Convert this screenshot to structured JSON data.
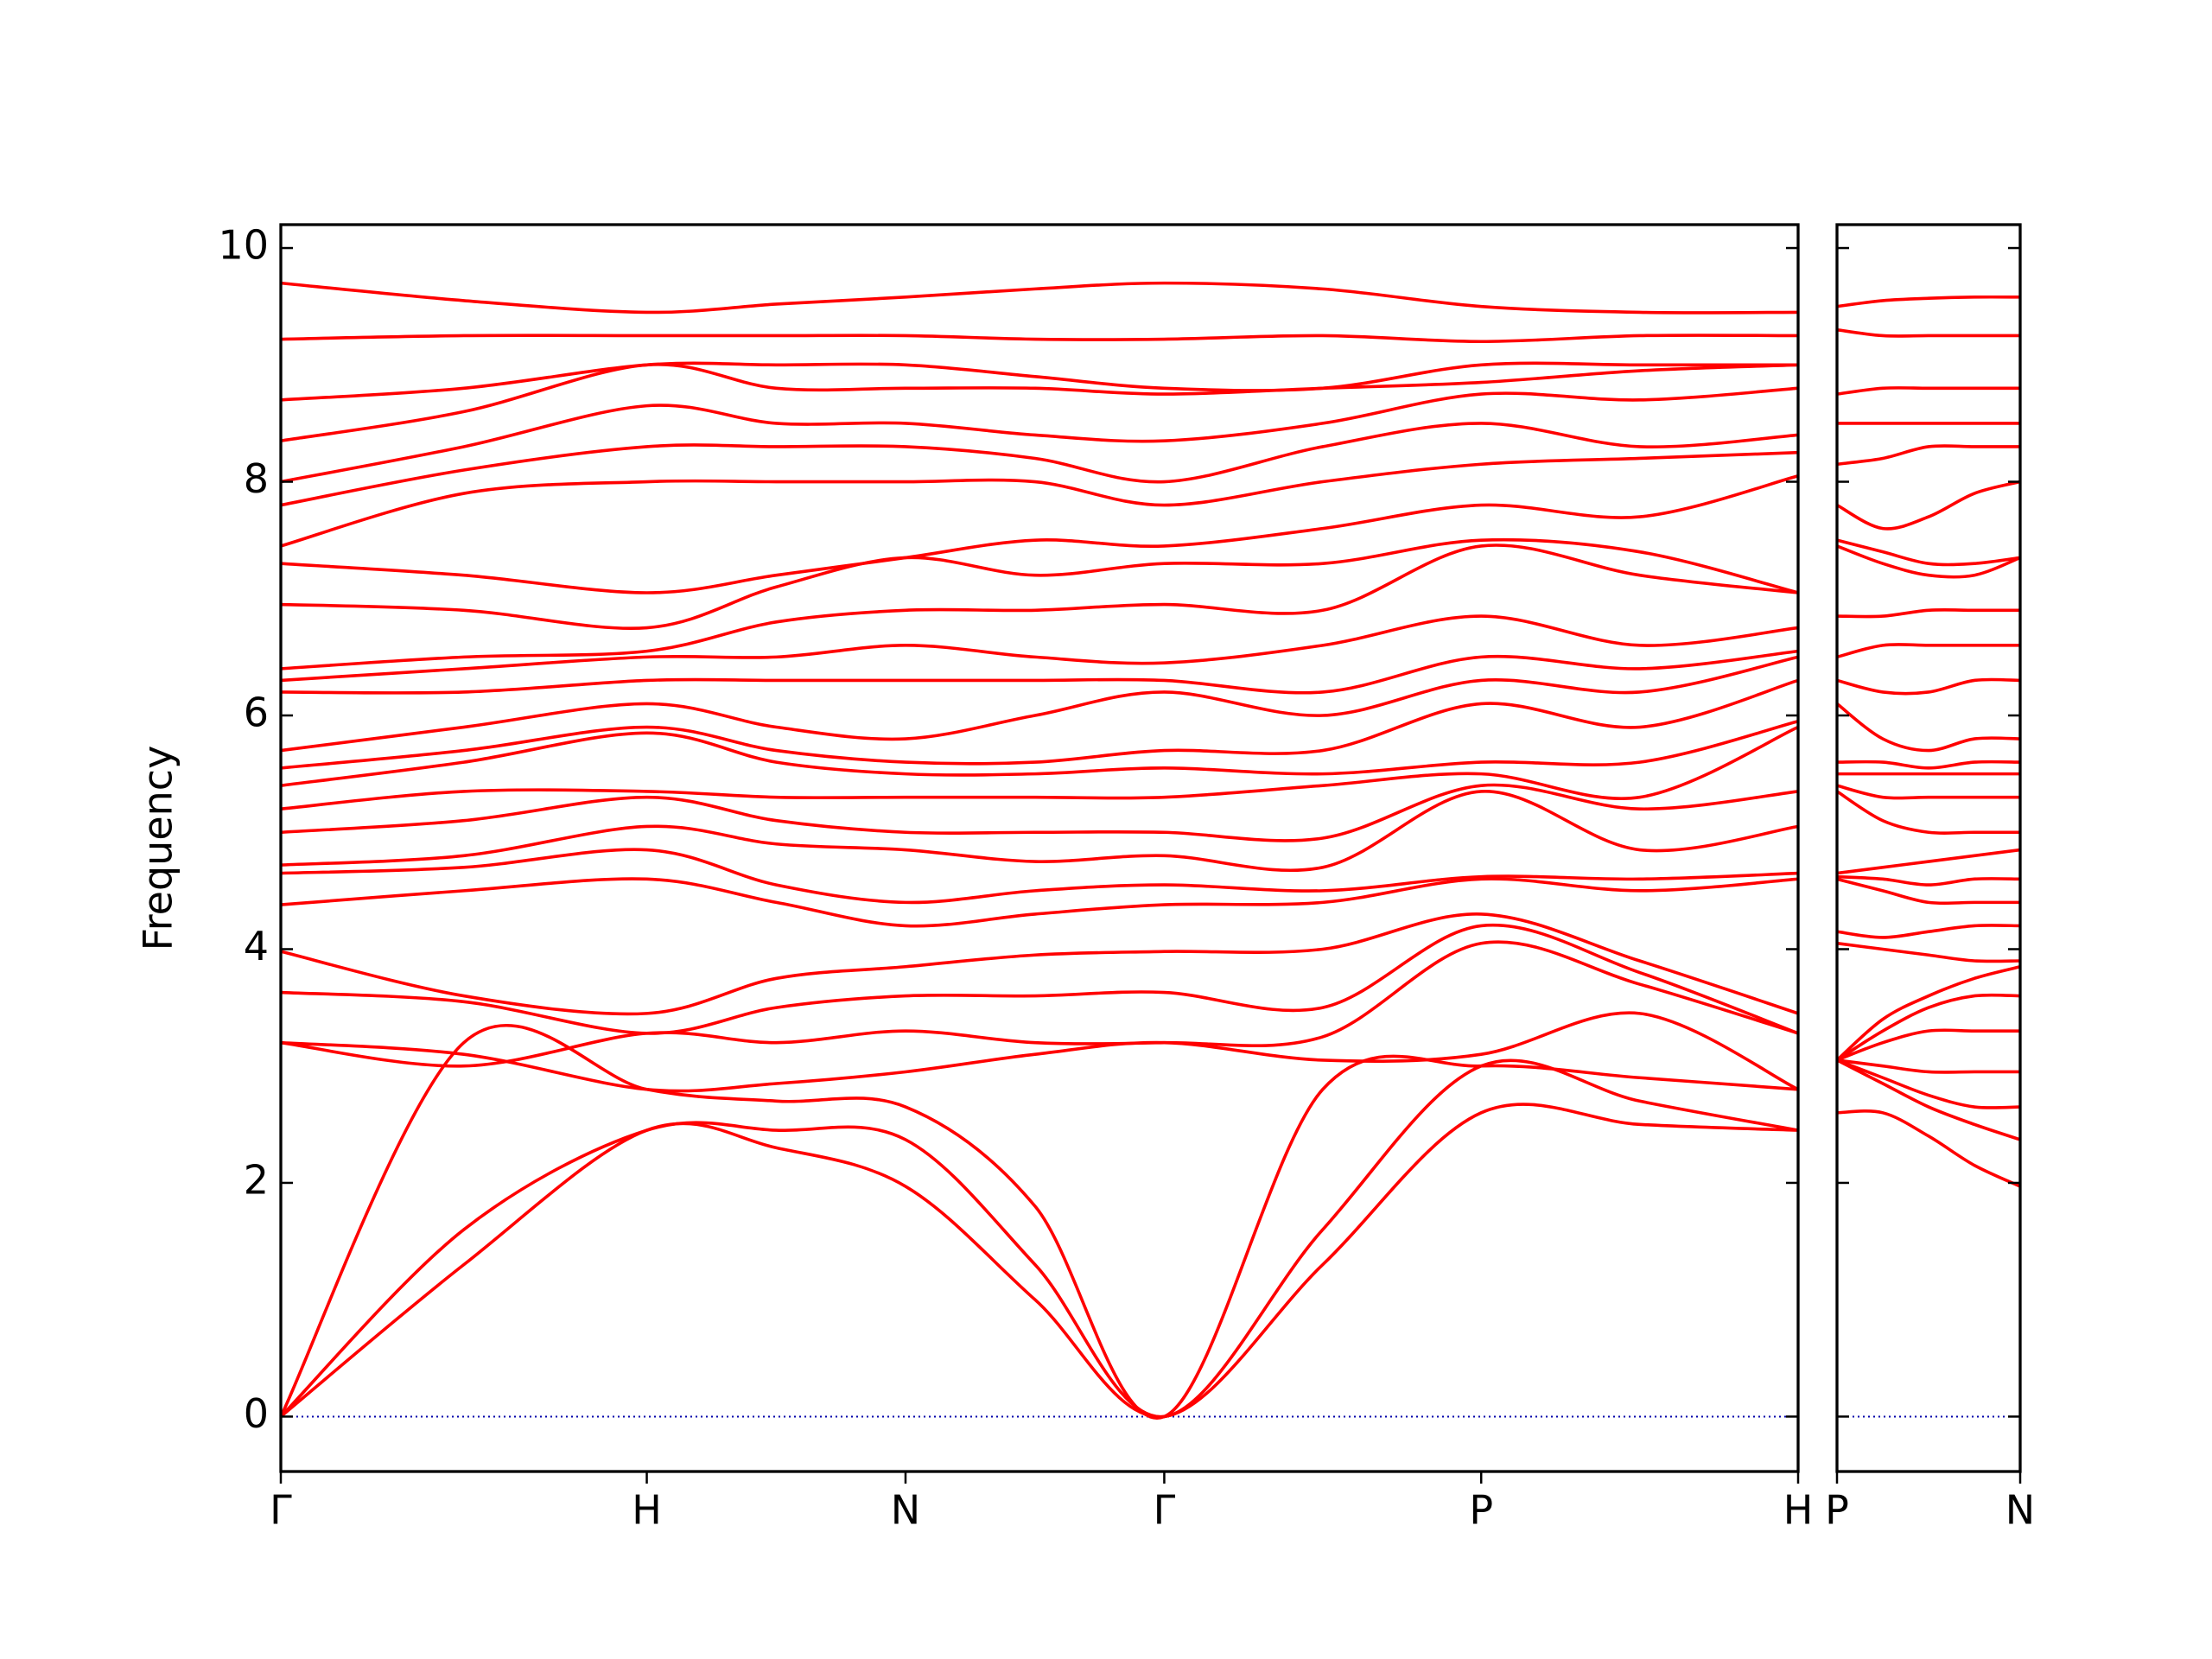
{
  "chart_data": [
    {
      "type": "line",
      "ylabel": "Frequency",
      "color": "#ff0000",
      "x": [
        0,
        0.5,
        1,
        1.354,
        1.707,
        2.061,
        2.414,
        2.847,
        3.28,
        3.713,
        4.146
      ],
      "xlim": [
        0,
        4.146
      ],
      "xticks": [
        {
          "value": 0,
          "label": "Γ"
        },
        {
          "value": 1,
          "label": "H"
        },
        {
          "value": 1.707,
          "label": "N"
        },
        {
          "value": 2.414,
          "label": "Γ"
        },
        {
          "value": 3.28,
          "label": "P"
        },
        {
          "value": 4.146,
          "label": "H"
        }
      ],
      "ylim": [
        -0.47,
        10.2
      ],
      "yticks": [
        0,
        2,
        4,
        6,
        8,
        10
      ],
      "series": [
        {
          "values": [
            0,
            1.3,
            2.45,
            2.3,
            1.97,
            1.0,
            0,
            1.3,
            2.6,
            2.5,
            2.45
          ]
        },
        {
          "values": [
            0,
            1.6,
            2.45,
            2.45,
            2.37,
            1.3,
            0,
            1.6,
            3.0,
            2.7,
            2.45
          ]
        },
        {
          "values": [
            0,
            3.2,
            2.8,
            2.7,
            2.65,
            1.8,
            0,
            2.8,
            3.0,
            2.9,
            2.8
          ]
        },
        {
          "values": [
            3.2,
            3.1,
            2.8,
            2.85,
            2.95,
            3.1,
            3.2,
            3.05,
            3.1,
            3.45,
            2.8
          ]
        },
        {
          "values": [
            3.2,
            3.0,
            3.28,
            3.2,
            3.3,
            3.2,
            3.2,
            3.25,
            4.05,
            3.7,
            3.28
          ]
        },
        {
          "values": [
            3.63,
            3.55,
            3.28,
            3.5,
            3.6,
            3.6,
            3.63,
            3.5,
            4.2,
            3.8,
            3.28
          ]
        },
        {
          "values": [
            3.98,
            3.6,
            3.45,
            3.75,
            3.85,
            3.95,
            3.98,
            4.0,
            4.3,
            3.9,
            3.45
          ]
        },
        {
          "values": [
            4.38,
            4.5,
            4.6,
            4.4,
            4.2,
            4.3,
            4.38,
            4.4,
            4.6,
            4.5,
            4.6
          ]
        },
        {
          "values": [
            4.65,
            4.7,
            4.85,
            4.55,
            4.4,
            4.5,
            4.55,
            4.5,
            4.62,
            4.6,
            4.65
          ]
        },
        {
          "values": [
            4.72,
            4.8,
            5.05,
            4.9,
            4.85,
            4.75,
            4.8,
            4.7,
            5.35,
            4.85,
            5.05
          ]
        },
        {
          "values": [
            5.0,
            5.1,
            5.3,
            5.1,
            5.0,
            5.0,
            5.0,
            4.95,
            5.4,
            5.2,
            5.35
          ]
        },
        {
          "values": [
            5.2,
            5.35,
            5.35,
            5.3,
            5.3,
            5.3,
            5.3,
            5.4,
            5.5,
            5.3,
            5.9
          ]
        },
        {
          "values": [
            5.4,
            5.6,
            5.85,
            5.6,
            5.5,
            5.5,
            5.55,
            5.5,
            5.6,
            5.6,
            5.95
          ]
        },
        {
          "values": [
            5.55,
            5.7,
            5.9,
            5.7,
            5.6,
            5.6,
            5.7,
            5.7,
            6.1,
            5.9,
            6.3
          ]
        },
        {
          "values": [
            5.7,
            5.9,
            6.1,
            5.9,
            5.8,
            6.0,
            6.2,
            6.0,
            6.3,
            6.2,
            6.5
          ]
        },
        {
          "values": [
            6.2,
            6.2,
            6.3,
            6.3,
            6.3,
            6.3,
            6.3,
            6.2,
            6.5,
            6.4,
            6.55
          ]
        },
        {
          "values": [
            6.3,
            6.4,
            6.5,
            6.5,
            6.6,
            6.5,
            6.45,
            6.6,
            6.85,
            6.6,
            6.75
          ]
        },
        {
          "values": [
            6.4,
            6.5,
            6.55,
            6.8,
            6.9,
            6.9,
            6.95,
            6.9,
            7.45,
            7.2,
            7.05
          ]
        },
        {
          "values": [
            6.95,
            6.9,
            6.75,
            7.1,
            7.35,
            7.2,
            7.3,
            7.3,
            7.5,
            7.4,
            7.05
          ]
        },
        {
          "values": [
            7.3,
            7.2,
            7.05,
            7.2,
            7.35,
            7.5,
            7.45,
            7.6,
            7.8,
            7.7,
            8.05
          ]
        },
        {
          "values": [
            7.45,
            7.9,
            8.0,
            8.0,
            8.0,
            8.0,
            7.8,
            8.0,
            8.15,
            8.2,
            8.25
          ]
        },
        {
          "values": [
            7.8,
            8.1,
            8.3,
            8.3,
            8.3,
            8.2,
            8.0,
            8.3,
            8.5,
            8.3,
            8.4
          ]
        },
        {
          "values": [
            8.0,
            8.3,
            8.65,
            8.5,
            8.5,
            8.4,
            8.35,
            8.5,
            8.75,
            8.7,
            8.8
          ]
        },
        {
          "values": [
            8.35,
            8.6,
            9.0,
            8.8,
            8.8,
            8.8,
            8.75,
            8.8,
            8.85,
            8.95,
            9.0
          ]
        },
        {
          "values": [
            8.7,
            8.8,
            9.0,
            9.0,
            9.0,
            8.9,
            8.8,
            8.8,
            9.0,
            9.0,
            9.0
          ]
        },
        {
          "values": [
            9.22,
            9.25,
            9.25,
            9.25,
            9.25,
            9.22,
            9.22,
            9.25,
            9.2,
            9.25,
            9.25
          ]
        },
        {
          "values": [
            9.7,
            9.55,
            9.45,
            9.52,
            9.58,
            9.65,
            9.7,
            9.65,
            9.5,
            9.45,
            9.45
          ]
        }
      ]
    },
    {
      "type": "line",
      "color": "#ff0000",
      "x": [
        0,
        0.125,
        0.25,
        0.375,
        0.5
      ],
      "xlim": [
        0,
        0.5
      ],
      "xticks": [
        {
          "value": 0,
          "label": "P"
        },
        {
          "value": 0.5,
          "label": "N"
        }
      ],
      "ylim": [
        -0.47,
        10.2
      ],
      "yticks": [
        0,
        2,
        4,
        6,
        8,
        10
      ],
      "series": [
        {
          "values": [
            2.6,
            2.6,
            2.4,
            2.15,
            1.97
          ]
        },
        {
          "values": [
            3.05,
            2.85,
            2.65,
            2.5,
            2.37
          ]
        },
        {
          "values": [
            3.05,
            2.9,
            2.75,
            2.65,
            2.65
          ]
        },
        {
          "values": [
            3.05,
            3.0,
            2.95,
            2.95,
            2.95
          ]
        },
        {
          "values": [
            3.05,
            3.2,
            3.3,
            3.3,
            3.3
          ]
        },
        {
          "values": [
            3.05,
            3.3,
            3.5,
            3.6,
            3.6
          ]
        },
        {
          "values": [
            3.05,
            3.4,
            3.6,
            3.75,
            3.85
          ]
        },
        {
          "values": [
            4.05,
            4.0,
            3.95,
            3.9,
            3.9
          ]
        },
        {
          "values": [
            4.15,
            4.1,
            4.15,
            4.2,
            4.2
          ]
        },
        {
          "values": [
            4.6,
            4.5,
            4.4,
            4.4,
            4.4
          ]
        },
        {
          "values": [
            4.62,
            4.6,
            4.55,
            4.6,
            4.6
          ]
        },
        {
          "values": [
            4.65,
            4.7,
            4.75,
            4.8,
            4.85
          ]
        },
        {
          "values": [
            5.35,
            5.1,
            5.0,
            5.0,
            5.0
          ]
        },
        {
          "values": [
            5.4,
            5.3,
            5.3,
            5.3,
            5.3
          ]
        },
        {
          "values": [
            5.5,
            5.5,
            5.5,
            5.5,
            5.5
          ]
        },
        {
          "values": [
            5.6,
            5.6,
            5.55,
            5.6,
            5.6
          ]
        },
        {
          "values": [
            6.1,
            5.8,
            5.7,
            5.8,
            5.8
          ]
        },
        {
          "values": [
            6.3,
            6.2,
            6.2,
            6.3,
            6.3
          ]
        },
        {
          "values": [
            6.5,
            6.6,
            6.6,
            6.6,
            6.6
          ]
        },
        {
          "values": [
            6.85,
            6.85,
            6.9,
            6.9,
            6.9
          ]
        },
        {
          "values": [
            7.45,
            7.3,
            7.2,
            7.2,
            7.35
          ]
        },
        {
          "values": [
            7.5,
            7.4,
            7.3,
            7.3,
            7.35
          ]
        },
        {
          "values": [
            7.8,
            7.6,
            7.7,
            7.9,
            8.0
          ]
        },
        {
          "values": [
            8.15,
            8.2,
            8.3,
            8.3,
            8.3
          ]
        },
        {
          "values": [
            8.5,
            8.5,
            8.5,
            8.5,
            8.5
          ]
        },
        {
          "values": [
            8.75,
            8.8,
            8.8,
            8.8,
            8.8
          ]
        },
        {
          "values": [
            9.3,
            9.25,
            9.25,
            9.25,
            9.25
          ]
        },
        {
          "values": [
            9.5,
            9.55,
            9.57,
            9.58,
            9.58
          ]
        }
      ]
    }
  ]
}
